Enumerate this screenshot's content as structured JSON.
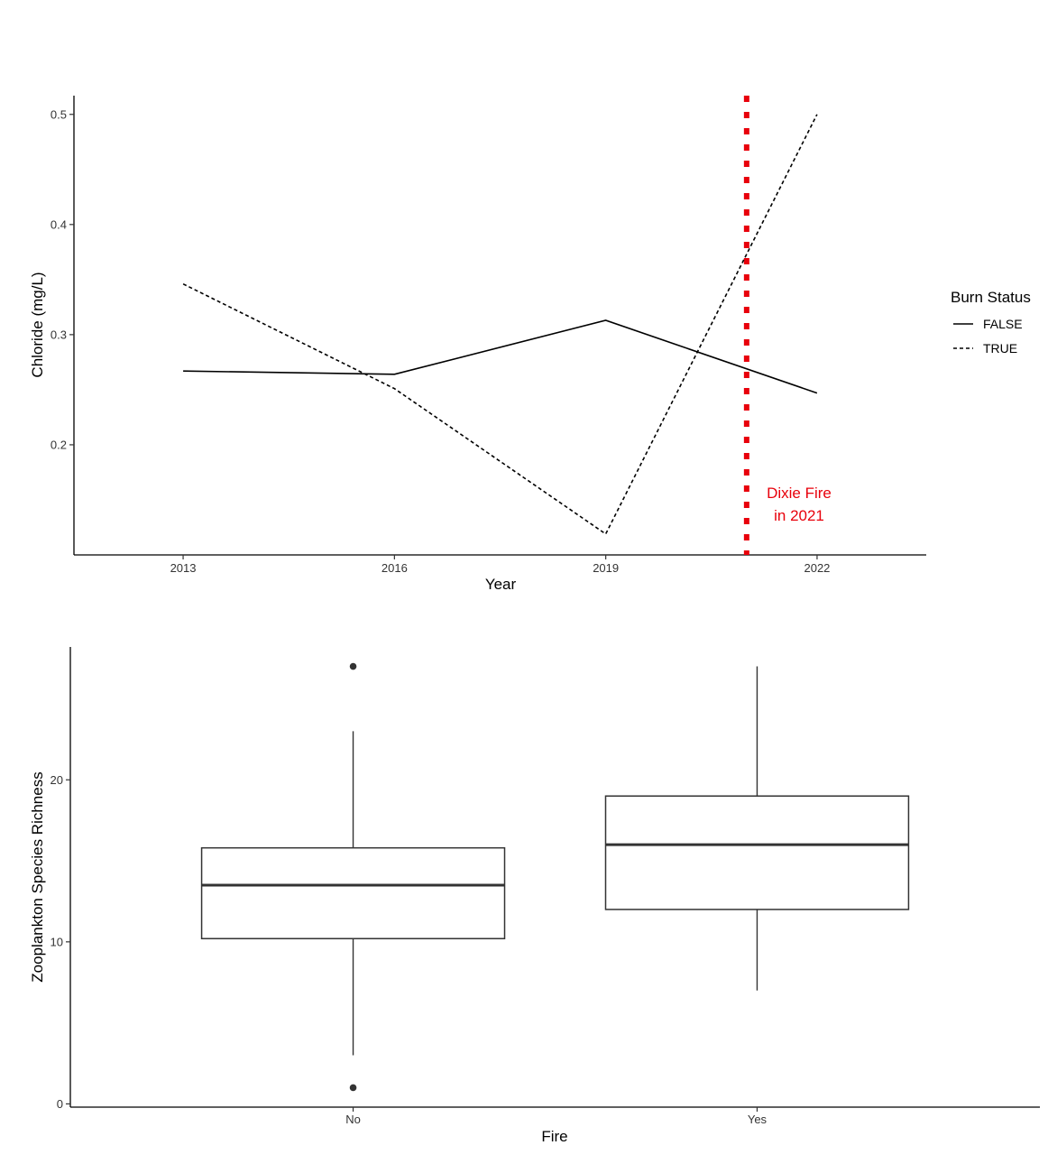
{
  "chart_data": [
    {
      "type": "line",
      "xlabel": "Year",
      "ylabel": "Chloride (mg/L)",
      "x": [
        2013,
        2016,
        2019,
        2022
      ],
      "xlim": [
        2011.45,
        2023.55
      ],
      "ylim": [
        0.1,
        0.517
      ],
      "x_ticks": [
        "2013",
        "2016",
        "2019",
        "2022"
      ],
      "y_ticks": [
        "0.2",
        "0.3",
        "0.4",
        "0.5"
      ],
      "legend": {
        "title": "Burn Status",
        "placement": "right"
      },
      "grid": false,
      "series": [
        {
          "name": "FALSE",
          "linestyle": "solid",
          "values": [
            0.267,
            0.264,
            0.313,
            0.247
          ]
        },
        {
          "name": "TRUE",
          "linestyle": "dashed",
          "values": [
            0.346,
            0.251,
            0.119,
            0.5
          ]
        }
      ],
      "vline": {
        "x": 2021,
        "color": "#e8000b",
        "style": "dotted"
      },
      "annotation": {
        "lines": [
          "Dixie  Fire",
          "in  2021"
        ],
        "color": "#e8000b"
      }
    },
    {
      "type": "box",
      "xlabel": "Fire",
      "ylabel": "Zooplankton  Species  Richness",
      "categories": [
        "No",
        "Yes"
      ],
      "ylim": [
        -0.2,
        28.2
      ],
      "y_ticks": [
        "0",
        "10",
        "20"
      ],
      "grid": false,
      "boxes": [
        {
          "name": "No",
          "whisker_low": 3,
          "q1": 10.2,
          "median": 13.5,
          "q3": 15.8,
          "whisker_high": 23,
          "outliers": [
            27,
            1
          ]
        },
        {
          "name": "Yes",
          "whisker_low": 7,
          "q1": 12,
          "median": 16,
          "q3": 19,
          "whisker_high": 27,
          "outliers": []
        }
      ]
    }
  ]
}
